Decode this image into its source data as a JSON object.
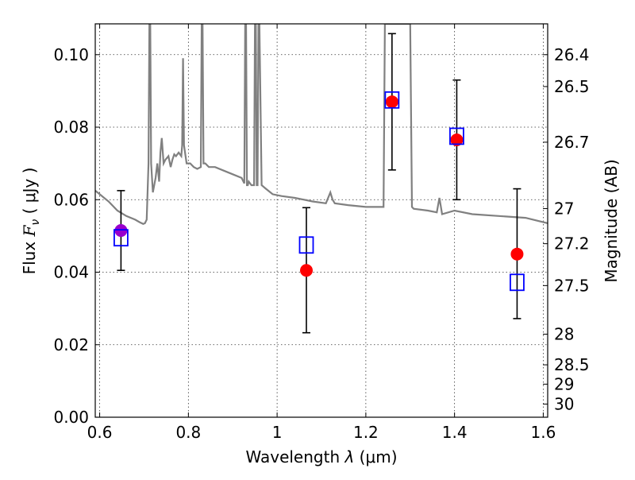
{
  "chart_data": {
    "type": "scatter",
    "title": "",
    "xlabel_prefix": "Wavelength  ",
    "xlabel_lambda": "λ",
    "xlabel_suffix": " (μm)",
    "ylabel_prefix": "Flux  ",
    "ylabel_var": "F",
    "ylabel_sub": "ν",
    "ylabel_suffix": "  ( μJy )",
    "y2label": "Magnitude (AB)",
    "xlim": [
      0.59,
      1.61
    ],
    "ylim": [
      0.0,
      0.1085
    ],
    "grid": true,
    "x_ticks": [
      {
        "value": 0.6,
        "label": "0.6"
      },
      {
        "value": 0.8,
        "label": "0.8"
      },
      {
        "value": 1.0,
        "label": "1"
      },
      {
        "value": 1.2,
        "label": "1.2"
      },
      {
        "value": 1.4,
        "label": "1.4"
      },
      {
        "value": 1.6,
        "label": "1.6"
      }
    ],
    "y_ticks": [
      {
        "value": 0.0,
        "label": "0.00"
      },
      {
        "value": 0.02,
        "label": "0.02"
      },
      {
        "value": 0.04,
        "label": "0.04"
      },
      {
        "value": 0.06,
        "label": "0.06"
      },
      {
        "value": 0.08,
        "label": "0.08"
      },
      {
        "value": 0.1,
        "label": "0.10"
      }
    ],
    "mag_ticks": [
      {
        "mag": 26.4,
        "label": "26.4"
      },
      {
        "mag": 26.5,
        "label": "26.5"
      },
      {
        "mag": 26.7,
        "label": "26.7"
      },
      {
        "mag": 27.0,
        "label": "27"
      },
      {
        "mag": 27.2,
        "label": "27.2"
      },
      {
        "mag": 27.5,
        "label": "27.5"
      },
      {
        "mag": 28.0,
        "label": "28"
      },
      {
        "mag": 28.5,
        "label": "28.5"
      },
      {
        "mag": 29.0,
        "label": "29"
      },
      {
        "mag": 30.0,
        "label": "30"
      }
    ],
    "observed": [
      {
        "x": 0.648,
        "y": 0.0515,
        "yerr_low": 0.0405,
        "yerr_high": 0.0625,
        "color": "#9900cc"
      },
      {
        "x": 1.066,
        "y": 0.0405,
        "yerr_low": 0.0233,
        "yerr_high": 0.0578,
        "color": "#ff0000"
      },
      {
        "x": 1.259,
        "y": 0.087,
        "yerr_low": 0.0682,
        "yerr_high": 0.1058,
        "color": "#ff0000"
      },
      {
        "x": 1.405,
        "y": 0.0765,
        "yerr_low": 0.06,
        "yerr_high": 0.093,
        "color": "#ff0000"
      },
      {
        "x": 1.541,
        "y": 0.045,
        "yerr_low": 0.0272,
        "yerr_high": 0.063,
        "color": "#ff0000"
      }
    ],
    "model_photometry": [
      {
        "x": 0.648,
        "y": 0.0495
      },
      {
        "x": 1.066,
        "y": 0.0475
      },
      {
        "x": 1.259,
        "y": 0.0875
      },
      {
        "x": 1.405,
        "y": 0.0775
      },
      {
        "x": 1.541,
        "y": 0.0372
      }
    ],
    "model_spectrum": {
      "x": [
        0.59,
        0.6,
        0.62,
        0.64,
        0.66,
        0.68,
        0.69,
        0.698,
        0.702,
        0.706,
        0.71,
        0.712,
        0.714,
        0.716,
        0.72,
        0.726,
        0.73,
        0.734,
        0.737,
        0.74,
        0.744,
        0.748,
        0.755,
        0.76,
        0.764,
        0.768,
        0.772,
        0.778,
        0.784,
        0.786,
        0.788,
        0.79,
        0.796,
        0.804,
        0.812,
        0.82,
        0.828,
        0.83,
        0.832,
        0.834,
        0.836,
        0.838,
        0.846,
        0.86,
        0.88,
        0.9,
        0.92,
        0.926,
        0.928,
        0.93,
        0.932,
        0.934,
        0.936,
        0.942,
        0.948,
        0.95,
        0.952,
        0.954,
        0.956,
        0.958,
        0.96,
        0.965,
        0.975,
        0.99,
        1.01,
        1.04,
        1.08,
        1.11,
        1.12,
        1.125,
        1.13,
        1.16,
        1.2,
        1.24,
        1.243,
        1.246,
        1.3,
        1.304,
        1.308,
        1.34,
        1.36,
        1.366,
        1.372,
        1.4,
        1.44,
        1.5,
        1.56,
        1.61
      ],
      "y": [
        0.0625,
        0.0615,
        0.0595,
        0.057,
        0.0555,
        0.0545,
        0.0538,
        0.0533,
        0.0535,
        0.0545,
        0.07,
        0.1085,
        0.1085,
        0.07,
        0.062,
        0.066,
        0.07,
        0.065,
        0.073,
        0.077,
        0.07,
        0.071,
        0.072,
        0.069,
        0.071,
        0.0725,
        0.072,
        0.073,
        0.072,
        0.075,
        0.099,
        0.075,
        0.07,
        0.07,
        0.069,
        0.0685,
        0.069,
        0.1085,
        0.1085,
        0.07,
        0.07,
        0.07,
        0.069,
        0.069,
        0.068,
        0.067,
        0.066,
        0.0645,
        0.1085,
        0.1085,
        0.064,
        0.064,
        0.065,
        0.064,
        0.064,
        0.1085,
        0.1085,
        0.064,
        0.064,
        0.1085,
        0.1085,
        0.064,
        0.063,
        0.0615,
        0.061,
        0.0605,
        0.0595,
        0.059,
        0.062,
        0.06,
        0.059,
        0.0585,
        0.058,
        0.058,
        0.1085,
        0.1085,
        0.1085,
        0.058,
        0.0575,
        0.057,
        0.0565,
        0.0605,
        0.056,
        0.057,
        0.056,
        0.0555,
        0.055,
        0.0535
      ]
    }
  }
}
